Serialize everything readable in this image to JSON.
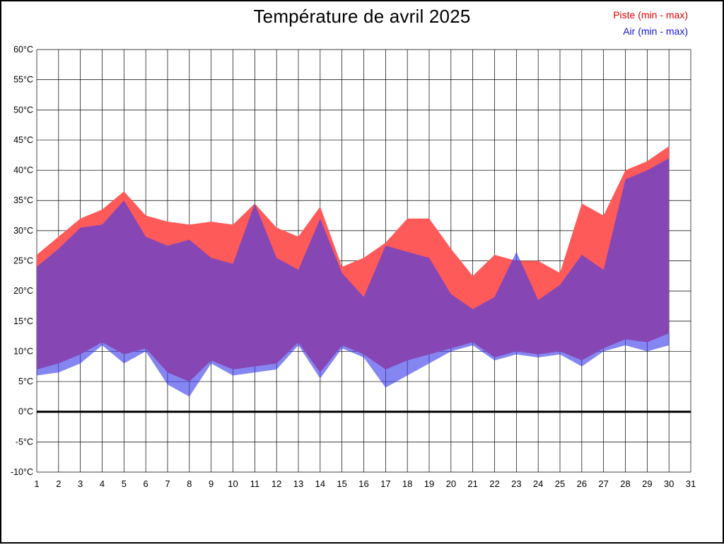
{
  "title": "Température de avril 2025",
  "legend": {
    "piste_label": "Piste (min - max)",
    "air_label": "Air (min - max)"
  },
  "colors": {
    "piste_fill": "#ff5a5a",
    "air_fill": "rgba(60,60,235,0.62)",
    "piste_legend_text": "#e00000",
    "air_legend_text": "#1515dd",
    "grid": "#000000",
    "zero_line": "#000000",
    "background": "#ffffff"
  },
  "chart_data": {
    "type": "area",
    "title": "Température de avril 2025",
    "xlabel": "",
    "ylabel": "",
    "x": [
      1,
      2,
      3,
      4,
      5,
      6,
      7,
      8,
      9,
      10,
      11,
      12,
      13,
      14,
      15,
      16,
      17,
      18,
      19,
      20,
      21,
      22,
      23,
      24,
      25,
      26,
      27,
      28,
      29,
      30
    ],
    "x_axis_ticks": [
      1,
      2,
      3,
      4,
      5,
      6,
      7,
      8,
      9,
      10,
      11,
      12,
      13,
      14,
      15,
      16,
      17,
      18,
      19,
      20,
      21,
      22,
      23,
      24,
      25,
      26,
      27,
      28,
      29,
      30,
      31
    ],
    "ylim": [
      -10,
      60
    ],
    "ytick_step": 5,
    "y_tick_suffix": "°C",
    "grid": true,
    "legend_position": "top-right",
    "series": [
      {
        "name": "Piste max",
        "values": [
          26,
          29,
          32,
          33.5,
          36.5,
          32.5,
          31.5,
          31,
          31.5,
          31,
          34.5,
          30.5,
          29,
          34,
          24,
          25.5,
          28,
          32,
          32,
          27,
          22.5,
          26,
          25,
          25,
          23,
          34.5,
          32.5,
          40,
          41.5,
          44
        ]
      },
      {
        "name": "Piste min",
        "values": [
          7,
          8,
          9.5,
          11.5,
          9.5,
          10.5,
          6.5,
          5,
          8.5,
          7,
          7.5,
          8,
          11.5,
          6.5,
          11,
          9.5,
          7,
          8.5,
          9.5,
          10.5,
          11.5,
          9,
          10,
          9.5,
          10,
          8.5,
          10.5,
          12,
          11.5,
          13
        ]
      },
      {
        "name": "Air max",
        "values": [
          24,
          27,
          30.5,
          31,
          35,
          29,
          27.5,
          28.5,
          25.5,
          24.5,
          34.5,
          25.5,
          23.5,
          32,
          23,
          19,
          27.5,
          26.5,
          25.5,
          19.5,
          17,
          19,
          26.5,
          18.5,
          21,
          26,
          23.5,
          38.5,
          40,
          42
        ]
      },
      {
        "name": "Air min",
        "values": [
          6,
          6.5,
          8,
          11,
          8,
          10,
          4.5,
          2.5,
          8,
          6,
          6.5,
          7,
          11,
          5.5,
          10.5,
          9,
          4,
          6,
          8,
          10,
          11,
          8.5,
          9.5,
          9,
          9.5,
          7.5,
          10,
          11,
          10,
          11
        ]
      }
    ]
  }
}
